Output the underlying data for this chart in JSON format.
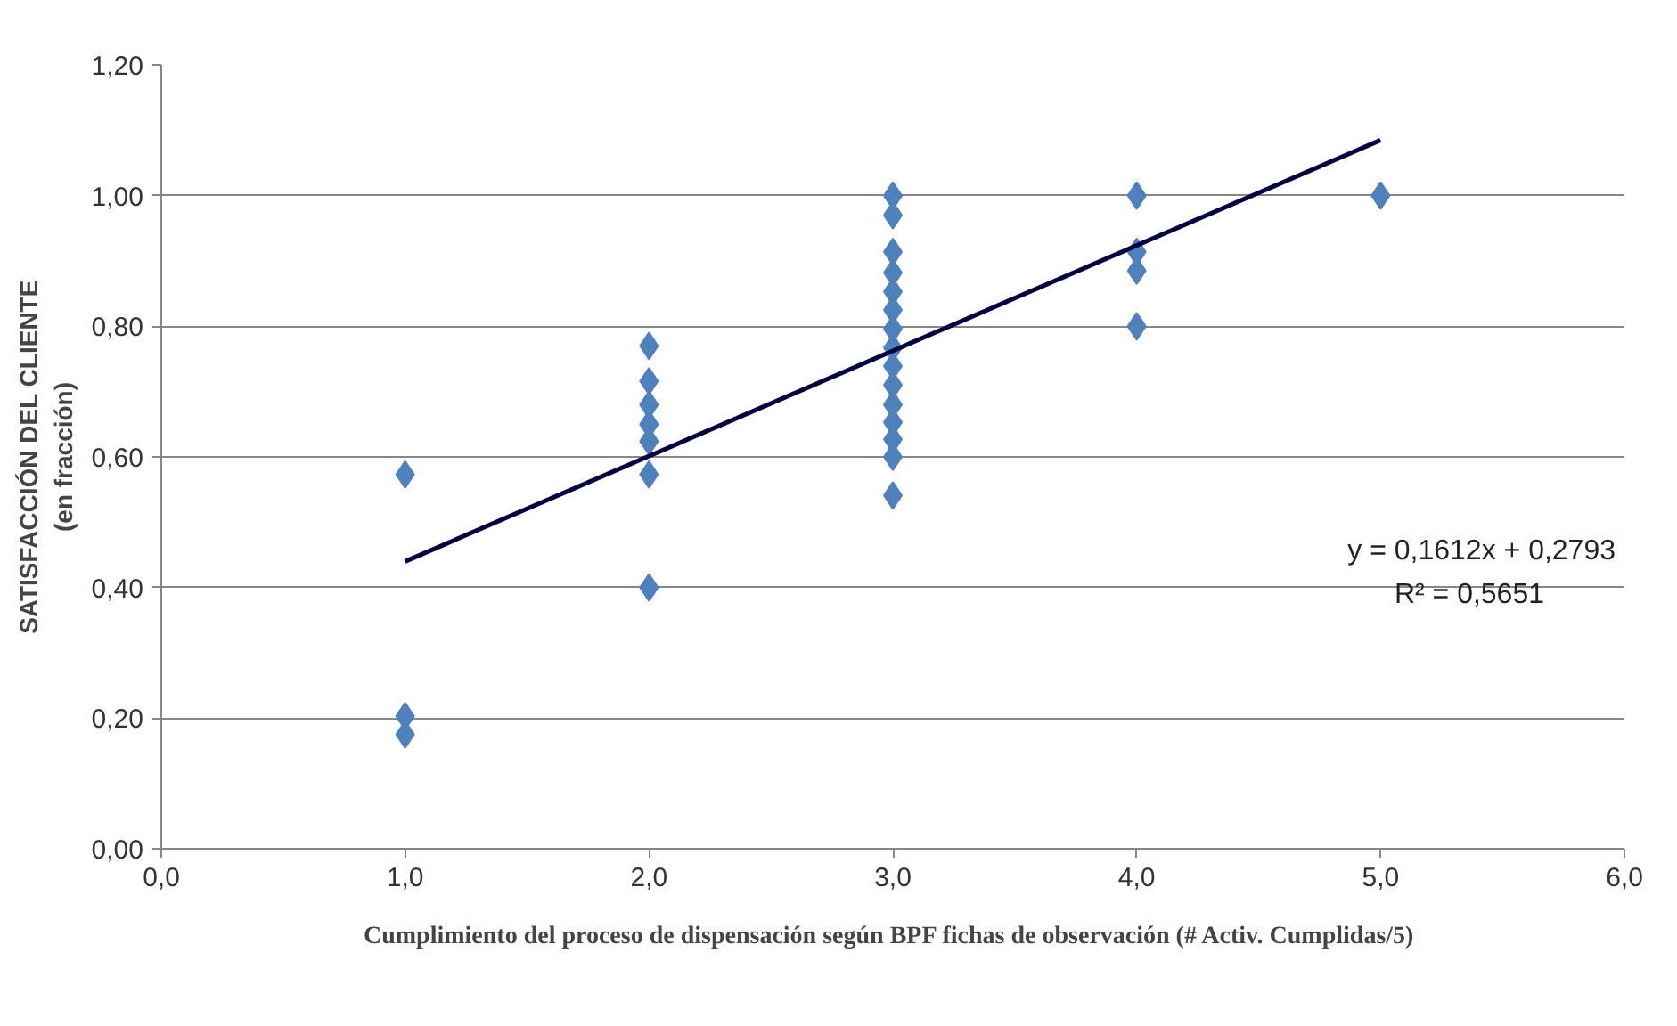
{
  "chart_data": {
    "type": "scatter",
    "xlabel": "Cumplimiento del proceso de dispensación  según BPF fichas de observación (# Activ. Cumplidas/5)",
    "ylabel": "SATISFACCIÓN DEL CLIENTE\n(en fracción)",
    "series": [
      {
        "color": "#4f81bd",
        "marker": "diamond",
        "x": [
          1,
          1,
          1,
          2,
          2,
          2,
          2,
          2,
          2,
          2,
          3,
          3,
          3,
          3,
          3,
          3,
          3,
          3,
          3,
          3,
          3,
          3,
          3,
          3,
          3,
          4,
          4,
          4,
          4,
          5
        ],
        "values": [
          0.573,
          0.203,
          0.175,
          0.77,
          0.716,
          0.68,
          0.65,
          0.624,
          0.573,
          0.4,
          1.0,
          0.97,
          0.914,
          0.882,
          0.853,
          0.825,
          0.796,
          0.767,
          0.739,
          0.71,
          0.68,
          0.653,
          0.627,
          0.6,
          0.541,
          1.0,
          0.914,
          0.885,
          0.8,
          1.0
        ]
      },
      {
        "type": "line",
        "color": "#000040",
        "x": [
          1,
          5
        ],
        "values": [
          0.44,
          1.085
        ]
      }
    ],
    "annotations": [
      "y = 0,1612x + 0,2793",
      "R² = 0,5651"
    ],
    "xlim": [
      0,
      6
    ],
    "ylim": [
      0,
      1.2
    ],
    "xticks": [
      {
        "value": 0,
        "label": "0,0"
      },
      {
        "value": 1,
        "label": "1,0"
      },
      {
        "value": 2,
        "label": "2,0"
      },
      {
        "value": 3,
        "label": "3,0"
      },
      {
        "value": 4,
        "label": "4,0"
      },
      {
        "value": 5,
        "label": "5,0"
      },
      {
        "value": 6,
        "label": "6,0"
      }
    ],
    "yticks": [
      {
        "value": 0,
        "label": "0,00"
      },
      {
        "value": 0.2,
        "label": "0,20"
      },
      {
        "value": 0.4,
        "label": "0,40"
      },
      {
        "value": 0.6,
        "label": "0,60"
      },
      {
        "value": 0.8,
        "label": "0,80"
      },
      {
        "value": 1.0,
        "label": "1,00"
      },
      {
        "value": 1.2,
        "label": "1,20"
      }
    ],
    "grid": "y"
  }
}
